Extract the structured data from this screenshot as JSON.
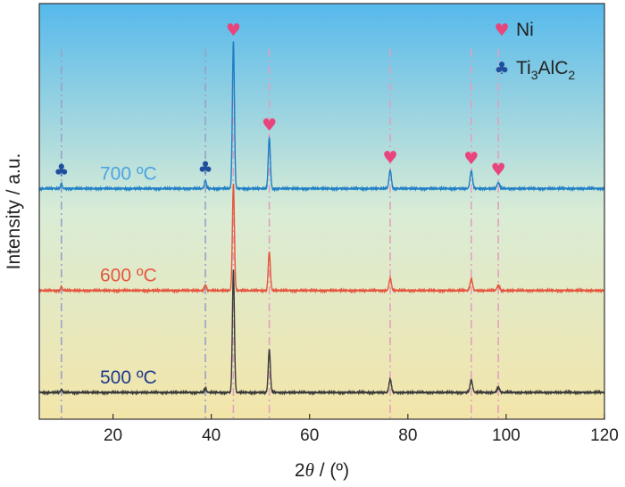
{
  "chart_data": {
    "type": "line",
    "xlabel_prefix": "2",
    "xlabel_theta": "θ",
    "xlabel_suffix": " / (º)",
    "ylabel": "Intensity / a.u.",
    "xlim": [
      5,
      120
    ],
    "xticks": [
      20,
      40,
      60,
      80,
      100,
      120
    ],
    "background_gradient": {
      "top": "#56b9ec",
      "middle": "#d9ecd6",
      "bottom": "#f3e5a9"
    },
    "legend": {
      "placement": "top-right",
      "items": [
        {
          "symbol": "♥",
          "symbol_color": "#e8457d",
          "label": "Ni"
        },
        {
          "symbol": "♣",
          "symbol_color": "#1f4e9c",
          "label_main": "Ti",
          "sub1": "3",
          "label_mid": "AlC",
          "sub2": "2"
        }
      ]
    },
    "reference_lines": [
      {
        "x": 9.5,
        "phase": "Ti3AlC2",
        "color": "#9aa0c8"
      },
      {
        "x": 38.8,
        "phase": "Ti3AlC2",
        "color": "#9aa0c8"
      },
      {
        "x": 44.5,
        "phase": "Ni",
        "color": "#e3a0bf"
      },
      {
        "x": 51.8,
        "phase": "Ni",
        "color": "#e3a0bf"
      },
      {
        "x": 76.4,
        "phase": "Ni",
        "color": "#e3a0bf"
      },
      {
        "x": 92.9,
        "phase": "Ni",
        "color": "#e3a0bf"
      },
      {
        "x": 98.4,
        "phase": "Ni",
        "color": "#e3a0bf"
      }
    ],
    "markers": [
      {
        "x": 9.5,
        "symbol": "♣",
        "color": "#1f4e9c"
      },
      {
        "x": 38.8,
        "symbol": "♣",
        "color": "#1f4e9c"
      },
      {
        "x": 44.5,
        "symbol": "♥",
        "color": "#e8457d"
      },
      {
        "x": 51.8,
        "symbol": "♥",
        "color": "#e8457d"
      },
      {
        "x": 76.4,
        "symbol": "♥",
        "color": "#e8457d"
      },
      {
        "x": 92.9,
        "symbol": "♥",
        "color": "#e8457d"
      },
      {
        "x": 98.4,
        "symbol": "♥",
        "color": "#e8457d"
      }
    ],
    "series": [
      {
        "name": "700 ºC",
        "color": "#1f7fc6",
        "label_color": "#4aa3e3",
        "baseline": 2.0,
        "peaks": [
          [
            9.5,
            0.05
          ],
          [
            38.8,
            0.08
          ],
          [
            44.5,
            1.45
          ],
          [
            51.8,
            0.5
          ],
          [
            76.4,
            0.18
          ],
          [
            92.9,
            0.17
          ],
          [
            98.4,
            0.06
          ]
        ]
      },
      {
        "name": "600 ºC",
        "color": "#e5573f",
        "label_color": "#e5573f",
        "baseline": 1.0,
        "peaks": [
          [
            9.5,
            0.04
          ],
          [
            38.8,
            0.05
          ],
          [
            44.5,
            1.05
          ],
          [
            51.8,
            0.38
          ],
          [
            76.4,
            0.12
          ],
          [
            92.9,
            0.11
          ],
          [
            98.4,
            0.05
          ]
        ]
      },
      {
        "name": "500 ºC",
        "color": "#3a3a3a",
        "label_color": "#1f3a8a",
        "baseline": 0.0,
        "peaks": [
          [
            9.5,
            0.03
          ],
          [
            38.8,
            0.04
          ],
          [
            44.5,
            1.2
          ],
          [
            51.8,
            0.42
          ],
          [
            76.4,
            0.13
          ],
          [
            92.9,
            0.12
          ],
          [
            98.4,
            0.05
          ]
        ]
      }
    ]
  }
}
